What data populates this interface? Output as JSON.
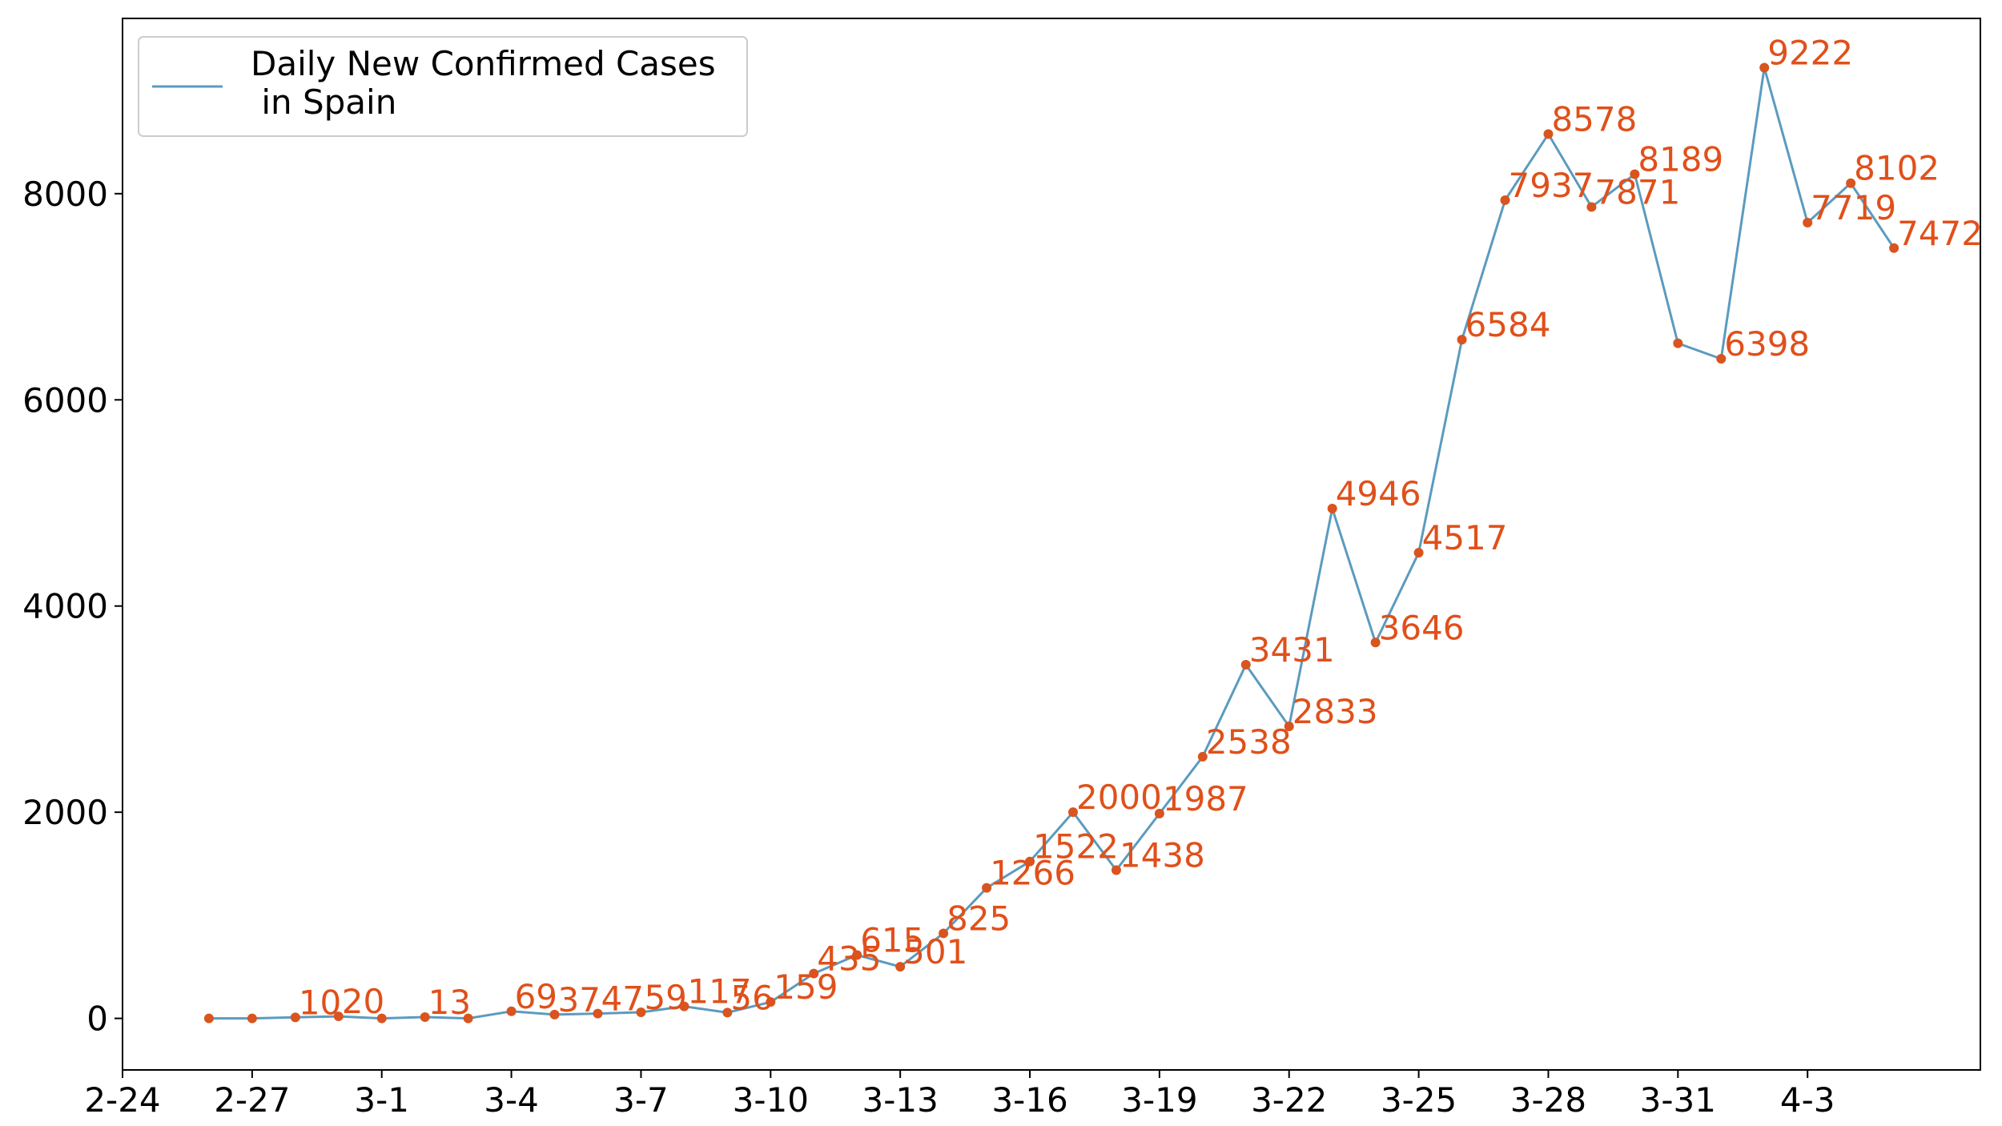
{
  "chart_data": {
    "type": "line",
    "title": "",
    "xlabel": "",
    "ylabel": "",
    "legend": {
      "position": "top-left",
      "lines": [
        "Daily New Confirmed Cases",
        " in Spain"
      ]
    },
    "xlim": [
      -2,
      41
    ],
    "ylim": [
      -500,
      9700
    ],
    "x_ticks": [
      {
        "pos": -2,
        "label": "2-24"
      },
      {
        "pos": 1,
        "label": "2-27"
      },
      {
        "pos": 4,
        "label": "3-1"
      },
      {
        "pos": 7,
        "label": "3-4"
      },
      {
        "pos": 10,
        "label": "3-7"
      },
      {
        "pos": 13,
        "label": "3-10"
      },
      {
        "pos": 16,
        "label": "3-13"
      },
      {
        "pos": 19,
        "label": "3-16"
      },
      {
        "pos": 22,
        "label": "3-19"
      },
      {
        "pos": 25,
        "label": "3-22"
      },
      {
        "pos": 28,
        "label": "3-25"
      },
      {
        "pos": 31,
        "label": "3-28"
      },
      {
        "pos": 34,
        "label": "3-31"
      },
      {
        "pos": 37,
        "label": "4-3"
      }
    ],
    "y_ticks": [
      0,
      2000,
      4000,
      6000,
      8000
    ],
    "grid": false,
    "colors": {
      "line": "#5b9bbf",
      "marker": "#d9541e",
      "label": "#e0501a"
    },
    "series": [
      {
        "values": [
          0,
          0,
          10,
          20,
          0,
          13,
          0,
          69,
          37,
          47,
          59,
          117,
          56,
          159,
          435,
          615,
          501,
          825,
          1266,
          1522,
          2000,
          1438,
          1987,
          2538,
          3431,
          2833,
          4946,
          3646,
          4517,
          6584,
          7937,
          8578,
          7871,
          8189,
          6549,
          6398,
          9222,
          7719,
          8102,
          7472
        ],
        "labels": [
          "",
          "",
          "10",
          "20",
          "",
          "13",
          "",
          "69",
          "37",
          "47",
          "59",
          "117",
          "56",
          "159",
          "435",
          "615",
          "501",
          "825",
          "1266",
          "1522",
          "2000",
          "1438",
          "1987",
          "2538",
          "3431",
          "2833",
          "4946",
          "3646",
          "4517",
          "6584",
          "7937",
          "8578",
          "7871",
          "8189",
          "",
          "6398",
          "9222",
          "7719",
          "8102",
          "7472"
        ]
      }
    ]
  }
}
